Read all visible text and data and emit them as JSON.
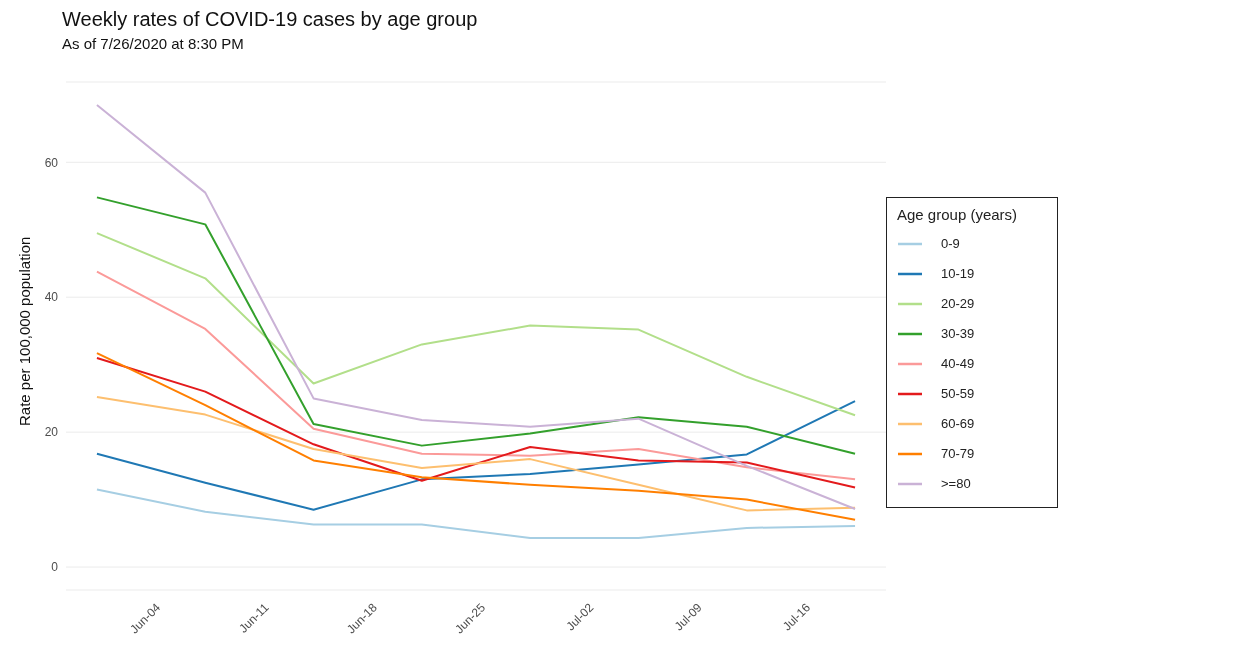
{
  "chart_data": {
    "type": "line",
    "title": "Weekly rates of COVID-19 cases by age group",
    "subtitle": "As of 7/26/2020 at 8:30 PM",
    "ylabel": "Rate per 100,000 population",
    "legend_title": "Age group (years)",
    "x": [
      "--05-31",
      "--06-07",
      "--06-14",
      "--06-21",
      "--06-28",
      "--07-05",
      "--07-12",
      "--07-19"
    ],
    "series": [
      {
        "name": "0-9",
        "color": "#a6cee3",
        "values": [
          11.5,
          8.2,
          6.3,
          6.3,
          4.3,
          4.3,
          5.8,
          6.1
        ]
      },
      {
        "name": "10-19",
        "color": "#1f78b4",
        "values": [
          16.8,
          12.5,
          8.5,
          13,
          13.8,
          15.2,
          16.7,
          24.6
        ]
      },
      {
        "name": "20-29",
        "color": "#b2df8a",
        "values": [
          49.5,
          42.8,
          27.2,
          33,
          35.8,
          35.2,
          28.2,
          22.5
        ]
      },
      {
        "name": "30-39",
        "color": "#33a02c",
        "values": [
          54.8,
          50.8,
          21.2,
          18,
          19.8,
          22.2,
          20.8,
          16.8
        ]
      },
      {
        "name": "40-49",
        "color": "#fb9a99",
        "values": [
          43.8,
          35.3,
          20.5,
          16.8,
          16.5,
          17.5,
          14.8,
          13
        ]
      },
      {
        "name": "50-59",
        "color": "#e31a1c",
        "values": [
          31,
          26,
          18.2,
          12.8,
          17.8,
          15.8,
          15.5,
          11.8
        ]
      },
      {
        "name": "60-69",
        "color": "#fdbf6f",
        "values": [
          25.2,
          22.6,
          17.5,
          14.7,
          16,
          12.2,
          8.4,
          8.8
        ]
      },
      {
        "name": "70-79",
        "color": "#ff7f00",
        "values": [
          31.7,
          24,
          15.8,
          13.3,
          12.2,
          11.3,
          10,
          7
        ]
      },
      {
        "name": ">=80",
        "color": "#cab2d6",
        "values": [
          68.5,
          55.5,
          25,
          21.8,
          20.8,
          22,
          15,
          8.6
        ]
      }
    ],
    "xlim": [
      "--05-29",
      "--07-21"
    ],
    "xticks": [
      {
        "value": "--06-04",
        "label": "Jun-04"
      },
      {
        "value": "--06-11",
        "label": "Jun-11"
      },
      {
        "value": "--06-18",
        "label": "Jun-18"
      },
      {
        "value": "--06-25",
        "label": "Jun-25"
      },
      {
        "value": "--07-02",
        "label": "Jul-02"
      },
      {
        "value": "--07-09",
        "label": "Jul-09"
      },
      {
        "value": "--07-16",
        "label": "Jul-16"
      }
    ],
    "ylim": [
      -3.4,
      71.9
    ],
    "yticks": [
      0,
      20,
      40,
      60
    ],
    "grid": "y",
    "legend": "right",
    "marker": "none",
    "line_style": "solid"
  }
}
